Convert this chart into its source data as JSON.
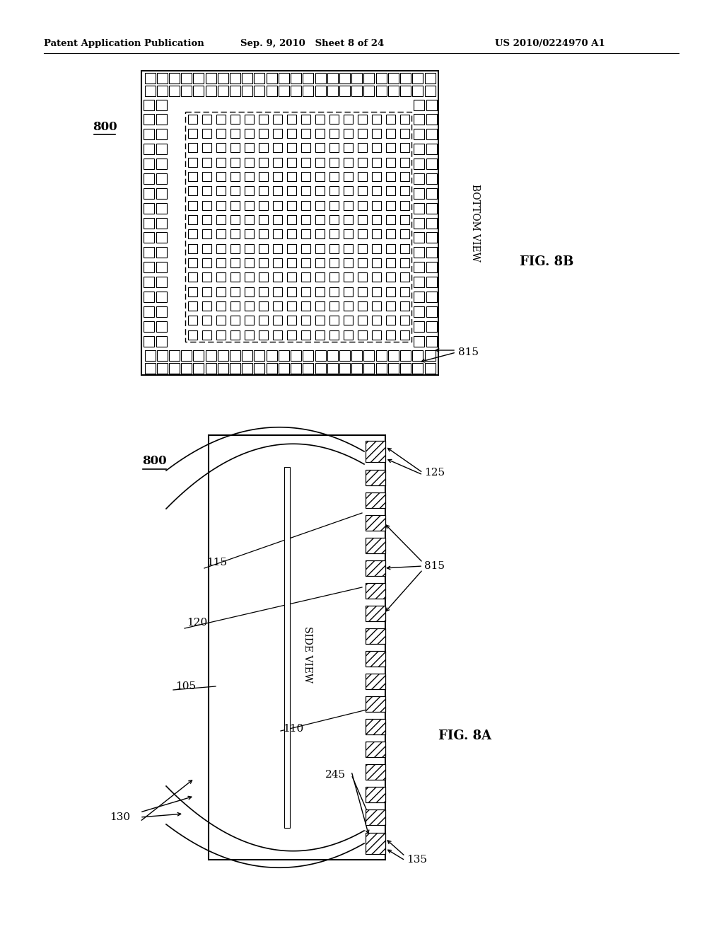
{
  "bg_color": "#ffffff",
  "header_left": "Patent Application Publication",
  "header_mid": "Sep. 9, 2010   Sheet 8 of 24",
  "header_right": "US 2010/0224970 A1",
  "fig8b_label": "FIG. 8B",
  "fig8a_label": "FIG. 8A",
  "bottom_view_label": "BOTTOM VIEW",
  "side_view_label": "SIDE VIEW",
  "label_800_top": "800",
  "label_800_bot": "800",
  "label_815_top": "815",
  "label_815_bot": "815",
  "label_125": "125",
  "label_115": "115",
  "label_120": "120",
  "label_105": "105",
  "label_110": "110",
  "label_245": "245",
  "label_130": "130",
  "label_135": "135"
}
